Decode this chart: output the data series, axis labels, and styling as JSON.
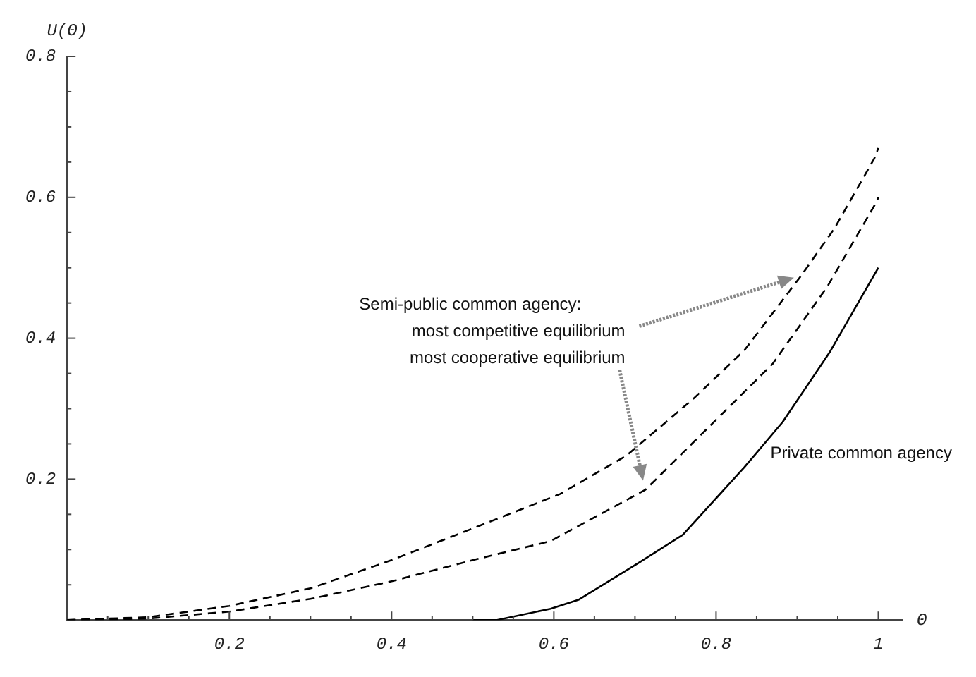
{
  "chart_data": {
    "type": "line",
    "xlabel": "Θ",
    "ylabel": "U(Θ)",
    "xlim": [
      0,
      1.03
    ],
    "ylim": [
      0,
      0.8
    ],
    "xticks": [
      {
        "value": 0.05,
        "label": null
      },
      {
        "value": 0.1,
        "label": null
      },
      {
        "value": 0.15,
        "label": null
      },
      {
        "value": 0.2,
        "label": "0.2"
      },
      {
        "value": 0.25,
        "label": null
      },
      {
        "value": 0.3,
        "label": null
      },
      {
        "value": 0.35,
        "label": null
      },
      {
        "value": 0.4,
        "label": "0.4"
      },
      {
        "value": 0.45,
        "label": null
      },
      {
        "value": 0.5,
        "label": null
      },
      {
        "value": 0.55,
        "label": null
      },
      {
        "value": 0.6,
        "label": "0.6"
      },
      {
        "value": 0.65,
        "label": null
      },
      {
        "value": 0.7,
        "label": null
      },
      {
        "value": 0.75,
        "label": null
      },
      {
        "value": 0.8,
        "label": "0.8"
      },
      {
        "value": 0.85,
        "label": null
      },
      {
        "value": 0.9,
        "label": null
      },
      {
        "value": 0.95,
        "label": null
      },
      {
        "value": 1,
        "label": "1"
      }
    ],
    "yticks": [
      {
        "value": 0.05,
        "label": null
      },
      {
        "value": 0.1,
        "label": null
      },
      {
        "value": 0.15,
        "label": null
      },
      {
        "value": 0.2,
        "label": "0.2"
      },
      {
        "value": 0.25,
        "label": null
      },
      {
        "value": 0.3,
        "label": null
      },
      {
        "value": 0.35,
        "label": null
      },
      {
        "value": 0.4,
        "label": "0.4"
      },
      {
        "value": 0.45,
        "label": null
      },
      {
        "value": 0.5,
        "label": null
      },
      {
        "value": 0.55,
        "label": null
      },
      {
        "value": 0.6,
        "label": "0.6"
      },
      {
        "value": 0.65,
        "label": null
      },
      {
        "value": 0.7,
        "label": null
      },
      {
        "value": 0.75,
        "label": null
      },
      {
        "value": 0.8,
        "label": "0.8"
      }
    ],
    "grid": false,
    "legend": false,
    "marker": "none",
    "series": [
      {
        "color": "#000000",
        "line_style": "dashed",
        "x": [
          0,
          0.1,
          0.2,
          0.3,
          0.4,
          0.5,
          0.608,
          0.689,
          0.771,
          0.835,
          0.905,
          0.946,
          0.995,
          1
        ],
        "values": [
          0,
          0.004,
          0.02,
          0.045,
          0.085,
          0.13,
          0.179,
          0.233,
          0.313,
          0.383,
          0.489,
          0.556,
          0.655,
          0.67
        ]
      },
      {
        "color": "#000000",
        "line_style": "dashed",
        "x": [
          0,
          0.1,
          0.2,
          0.3,
          0.4,
          0.5,
          0.596,
          0.713,
          0.87,
          0.937,
          0.998,
          1
        ],
        "values": [
          0,
          0.002,
          0.012,
          0.03,
          0.055,
          0.085,
          0.112,
          0.185,
          0.364,
          0.473,
          0.594,
          0.6
        ]
      },
      {
        "color": "#000000",
        "line_style": "solid",
        "x": [
          0.5,
          0.53,
          0.596,
          0.631,
          0.707,
          0.759,
          0.835,
          0.882,
          0.94,
          1
        ],
        "values": [
          0,
          0,
          0.016,
          0.029,
          0.083,
          0.121,
          0.217,
          0.281,
          0.38,
          0.5
        ]
      }
    ],
    "annotations": [
      "Semi-public common agency:",
      "most competitive equilibrium",
      "most cooperative equilibrium",
      "Private common agency"
    ]
  }
}
